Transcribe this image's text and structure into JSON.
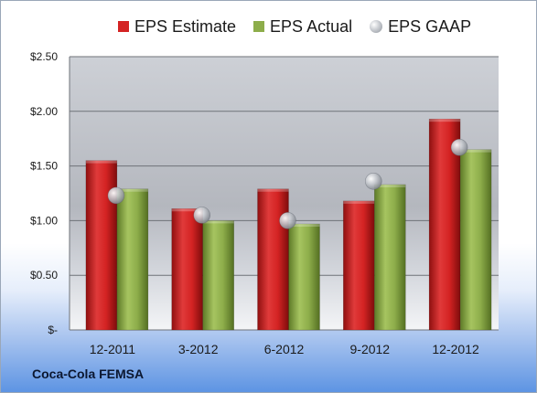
{
  "chart_data": {
    "type": "bar",
    "categories": [
      "12-2011",
      "3-2012",
      "6-2012",
      "9-2012",
      "12-2012"
    ],
    "series": [
      {
        "name": "EPS Estimate",
        "values": [
          1.55,
          1.11,
          1.29,
          1.18,
          1.93
        ],
        "color": "#d42323",
        "kind": "bar"
      },
      {
        "name": "EPS Actual",
        "values": [
          1.29,
          1.0,
          0.97,
          1.33,
          1.65
        ],
        "color": "#8dad4a",
        "kind": "bar"
      },
      {
        "name": "EPS GAAP",
        "values": [
          1.23,
          1.05,
          1.0,
          1.36,
          1.67
        ],
        "color": "#b8bcc2",
        "kind": "marker"
      }
    ],
    "ylim": [
      0,
      2.5
    ],
    "yticks": [
      {
        "value": 0,
        "label": "$-"
      },
      {
        "value": 0.5,
        "label": "$0.50"
      },
      {
        "value": 1.0,
        "label": "$1.00"
      },
      {
        "value": 1.5,
        "label": "$1.50"
      },
      {
        "value": 2.0,
        "label": "$2.00"
      },
      {
        "value": 2.5,
        "label": "$2.50"
      }
    ],
    "grid": true,
    "legend_position": "top",
    "title": "",
    "xlabel": "",
    "ylabel": ""
  },
  "footer": {
    "company": "Coca-Cola FEMSA"
  }
}
